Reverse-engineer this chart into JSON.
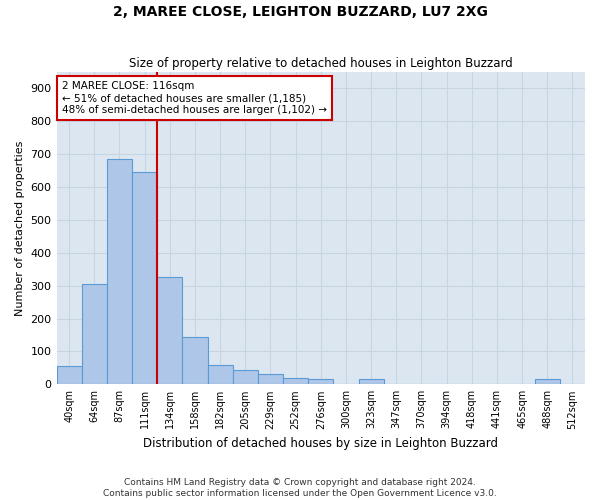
{
  "title": "2, MAREE CLOSE, LEIGHTON BUZZARD, LU7 2XG",
  "subtitle": "Size of property relative to detached houses in Leighton Buzzard",
  "xlabel": "Distribution of detached houses by size in Leighton Buzzard",
  "ylabel": "Number of detached properties",
  "footnote1": "Contains HM Land Registry data © Crown copyright and database right 2024.",
  "footnote2": "Contains public sector information licensed under the Open Government Licence v3.0.",
  "categories": [
    "40sqm",
    "64sqm",
    "87sqm",
    "111sqm",
    "134sqm",
    "158sqm",
    "182sqm",
    "205sqm",
    "229sqm",
    "252sqm",
    "276sqm",
    "300sqm",
    "323sqm",
    "347sqm",
    "370sqm",
    "394sqm",
    "418sqm",
    "441sqm",
    "465sqm",
    "488sqm",
    "512sqm"
  ],
  "bar_values": [
    55,
    305,
    685,
    645,
    325,
    145,
    60,
    45,
    30,
    20,
    15,
    0,
    15,
    0,
    0,
    0,
    0,
    0,
    0,
    15,
    0
  ],
  "bar_color": "#aec6e8",
  "bar_edge_color": "#5b9bd5",
  "vline_x": 3.5,
  "vline_color": "#cc0000",
  "annotation_line1": "2 MAREE CLOSE: 116sqm",
  "annotation_line2": "← 51% of detached houses are smaller (1,185)",
  "annotation_line3": "48% of semi-detached houses are larger (1,102) →",
  "annotation_box_color": "#ffffff",
  "annotation_box_edge": "#cc0000",
  "ylim": [
    0,
    950
  ],
  "yticks": [
    0,
    100,
    200,
    300,
    400,
    500,
    600,
    700,
    800,
    900
  ],
  "grid_color": "#c8d4e0",
  "bg_color": "#dce6f0"
}
